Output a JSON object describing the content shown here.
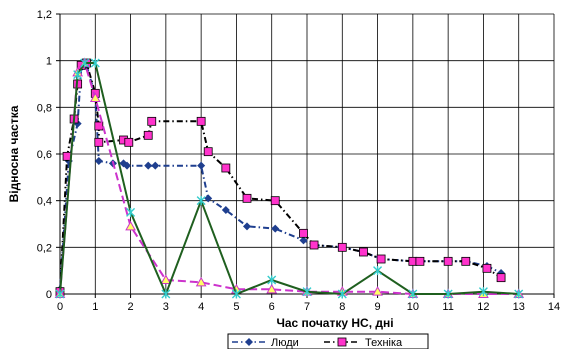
{
  "chart_data": {
    "type": "line",
    "xlabel": "Час початку НС, дні",
    "ylabel": "Відносна частка",
    "xlim": [
      0,
      14
    ],
    "ylim": [
      0,
      1.2
    ],
    "x_ticks": [
      0,
      1,
      2,
      3,
      4,
      5,
      6,
      7,
      8,
      9,
      10,
      11,
      12,
      13,
      14
    ],
    "y_ticks": [
      0,
      0.2,
      0.4,
      0.6,
      0.8,
      1,
      1.2
    ],
    "y_tick_labels": [
      "0",
      "0,2",
      "0,4",
      "0,6",
      "0,8",
      "1",
      "1,2"
    ],
    "grid": true,
    "legend_position": "bottom",
    "series": [
      {
        "name": "Люди",
        "color": "#1f3f8f",
        "line_style": "dash-dot",
        "marker": "diamond",
        "x": [
          0,
          0.25,
          0.5,
          0.6,
          0.75,
          1.0,
          1.1,
          1.5,
          1.8,
          1.9,
          2.5,
          2.7,
          4.0,
          4.2,
          4.7,
          5.3,
          6.1,
          6.9,
          7.2,
          8.0,
          8.6,
          9.1,
          10.0,
          10.2,
          11.0,
          11.5,
          12.1,
          12.5
        ],
        "y": [
          0.02,
          0.57,
          0.73,
          0.97,
          0.98,
          0.85,
          0.57,
          0.56,
          0.56,
          0.55,
          0.55,
          0.55,
          0.55,
          0.41,
          0.36,
          0.29,
          0.28,
          0.23,
          0.21,
          0.2,
          0.18,
          0.15,
          0.14,
          0.14,
          0.14,
          0.14,
          0.12,
          0.09
        ]
      },
      {
        "name": "Техніка",
        "color": "#000000",
        "marker_fill": "#ff33cc",
        "line_style": "dash-dot",
        "marker": "square",
        "x": [
          0,
          0.2,
          0.4,
          0.5,
          0.6,
          0.75,
          1.0,
          1.1,
          1.1,
          1.8,
          1.95,
          2.5,
          2.6,
          4.0,
          4.2,
          4.7,
          5.3,
          6.1,
          6.9,
          7.2,
          8.0,
          8.6,
          9.1,
          10.0,
          10.2,
          11.0,
          11.5,
          12.1,
          12.5
        ],
        "y": [
          0.01,
          0.59,
          0.75,
          0.9,
          0.98,
          0.99,
          0.86,
          0.72,
          0.65,
          0.66,
          0.65,
          0.68,
          0.74,
          0.74,
          0.61,
          0.54,
          0.41,
          0.4,
          0.26,
          0.21,
          0.2,
          0.18,
          0.15,
          0.14,
          0.14,
          0.14,
          0.14,
          0.11,
          0.07
        ]
      },
      {
        "color": "#cc33cc",
        "line_style": "dashed",
        "marker": "triangle",
        "x": [
          0,
          0.5,
          0.7,
          1.0,
          2.0,
          3.0,
          4.0,
          5.0,
          6.0,
          7.0,
          8.0,
          9.0,
          10.0,
          11.0,
          12.0,
          13.0
        ],
        "y": [
          0.0,
          0.95,
          0.99,
          0.84,
          0.29,
          0.06,
          0.05,
          0.02,
          0.02,
          0.01,
          0.01,
          0.01,
          0.0,
          0.0,
          0.0,
          0.0
        ]
      },
      {
        "color": "#1f5f1f",
        "line_style": "solid",
        "marker": "star",
        "x": [
          0,
          0.5,
          0.7,
          1.0,
          2.0,
          3.0,
          4.0,
          5.0,
          6.0,
          7.0,
          8.0,
          9.0,
          10.0,
          11.0,
          12.0,
          13.0
        ],
        "y": [
          0.0,
          0.94,
          0.99,
          0.99,
          0.35,
          0.0,
          0.4,
          0.0,
          0.06,
          0.01,
          0.0,
          0.1,
          0.0,
          0.0,
          0.01,
          0.0
        ]
      }
    ]
  }
}
